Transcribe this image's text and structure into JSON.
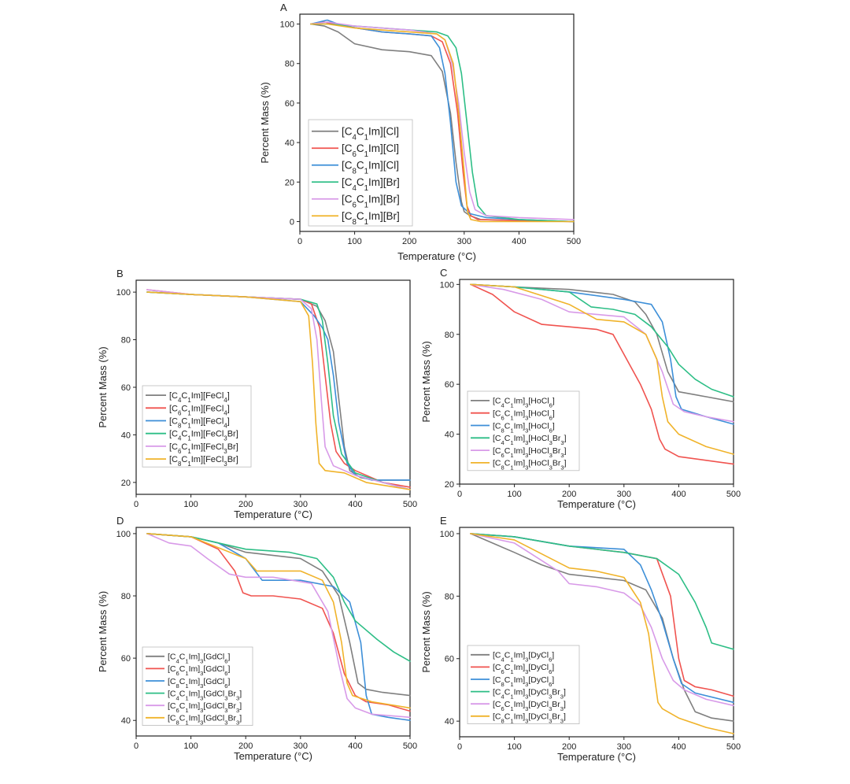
{
  "colors": [
    "#7f7f7f",
    "#f0534f",
    "#3d8fd8",
    "#2dbe86",
    "#d89ae8",
    "#f0b32a"
  ],
  "chart_data": [
    {
      "panel": "A",
      "type": "line",
      "xlabel": "Temperature (°C)",
      "ylabel": "Percent Mass (%)",
      "xlim": [
        0,
        500
      ],
      "ylim": [
        -5,
        105
      ],
      "xticks": [
        0,
        100,
        200,
        300,
        400,
        500
      ],
      "yticks": [
        0,
        20,
        40,
        60,
        80,
        100
      ],
      "legend_placement": "lower-left",
      "series": [
        {
          "name": "[C4C1Im][Cl]",
          "x": [
            20,
            45,
            70,
            100,
            150,
            200,
            240,
            260,
            275,
            285,
            295,
            300,
            310,
            330,
            400,
            500
          ],
          "y": [
            100,
            99,
            96,
            90,
            87,
            86,
            84,
            76,
            55,
            30,
            10,
            5,
            3,
            1,
            0.5,
            0
          ]
        },
        {
          "name": "[C6C1Im][Cl]",
          "x": [
            20,
            45,
            80,
            150,
            200,
            240,
            260,
            275,
            288,
            298,
            305,
            312,
            325,
            400,
            500
          ],
          "y": [
            100,
            101,
            99,
            96,
            95,
            94,
            91,
            80,
            55,
            25,
            8,
            3,
            1,
            0.5,
            0
          ]
        },
        {
          "name": "[C8C1Im][Cl]",
          "x": [
            20,
            50,
            80,
            150,
            200,
            240,
            255,
            265,
            275,
            285,
            295,
            310,
            340,
            400,
            500
          ],
          "y": [
            100,
            102,
            99,
            96,
            95,
            94,
            88,
            75,
            50,
            20,
            8,
            4,
            2,
            1,
            0
          ]
        },
        {
          "name": "[C4C1Im][Br]",
          "x": [
            20,
            50,
            100,
            200,
            250,
            270,
            285,
            295,
            305,
            315,
            325,
            340,
            400,
            500
          ],
          "y": [
            100,
            100,
            99,
            97,
            96,
            94,
            88,
            75,
            50,
            25,
            8,
            3,
            1,
            0
          ]
        },
        {
          "name": "[C6C1Im][Br]",
          "x": [
            20,
            50,
            100,
            200,
            250,
            265,
            278,
            290,
            300,
            310,
            320,
            340,
            400,
            500
          ],
          "y": [
            100,
            101,
            99,
            97,
            95,
            92,
            80,
            60,
            35,
            15,
            6,
            3,
            2,
            1
          ]
        },
        {
          "name": "[C8C1Im][Br]",
          "x": [
            20,
            50,
            100,
            200,
            250,
            265,
            280,
            290,
            300,
            306,
            312,
            330,
            400,
            500
          ],
          "y": [
            100,
            100,
            98,
            96,
            95,
            92,
            80,
            55,
            25,
            5,
            1,
            0,
            0,
            0
          ]
        }
      ]
    },
    {
      "panel": "B",
      "type": "line",
      "xlabel": "Temperature (°C)",
      "ylabel": "Percent Mass (%)",
      "xlim": [
        0,
        500
      ],
      "ylim": [
        15,
        105
      ],
      "xticks": [
        0,
        100,
        200,
        300,
        400,
        500
      ],
      "yticks": [
        20,
        40,
        60,
        80,
        100
      ],
      "legend_placement": "lower-left",
      "series": [
        {
          "name": "[C4C1Im][FeCl4]",
          "x": [
            20,
            100,
            200,
            300,
            330,
            345,
            360,
            370,
            380,
            390,
            410,
            440,
            500
          ],
          "y": [
            100,
            99,
            98,
            97,
            94,
            88,
            75,
            55,
            35,
            25,
            22,
            21,
            21
          ]
        },
        {
          "name": "[C6C1Im][FeCl4]",
          "x": [
            20,
            100,
            200,
            300,
            320,
            335,
            345,
            355,
            365,
            380,
            400,
            420,
            450,
            500
          ],
          "y": [
            101,
            99,
            98,
            97,
            95,
            85,
            65,
            45,
            33,
            28,
            25,
            23,
            20,
            18
          ]
        },
        {
          "name": "[C8C1Im][FeCl4]",
          "x": [
            20,
            100,
            200,
            300,
            325,
            340,
            350,
            360,
            370,
            385,
            400,
            430,
            500
          ],
          "y": [
            100,
            99,
            98,
            96,
            90,
            85,
            80,
            65,
            45,
            28,
            23,
            21,
            21
          ]
        },
        {
          "name": "[C4C1Im][FeCl3Br]",
          "x": [
            20,
            100,
            200,
            300,
            330,
            340,
            350,
            360,
            375,
            400,
            450,
            500
          ],
          "y": [
            100,
            99,
            98,
            97,
            95,
            88,
            70,
            48,
            32,
            24,
            20,
            17
          ]
        },
        {
          "name": "[C6C1Im][FeCl3Br]",
          "x": [
            20,
            100,
            200,
            300,
            320,
            330,
            338,
            345,
            360,
            400,
            450,
            500
          ],
          "y": [
            101,
            99,
            98,
            97,
            93,
            80,
            55,
            35,
            27,
            23,
            20,
            17
          ]
        },
        {
          "name": "[C8C1Im][FeCl3Br]",
          "x": [
            20,
            100,
            200,
            300,
            315,
            322,
            328,
            334,
            345,
            380,
            420,
            500
          ],
          "y": [
            100,
            99,
            98,
            96,
            90,
            70,
            45,
            28,
            25,
            24,
            20,
            17
          ]
        }
      ]
    },
    {
      "panel": "C",
      "type": "line",
      "xlabel": "Temperature (°C)",
      "ylabel": "Percent Mass (%)",
      "xlim": [
        0,
        500
      ],
      "ylim": [
        20,
        102
      ],
      "xticks": [
        0,
        100,
        200,
        300,
        400,
        500
      ],
      "yticks": [
        20,
        40,
        60,
        80,
        100
      ],
      "legend_placement": "lower-left",
      "series": [
        {
          "name": "[C4C1Im]3[HoCl6]",
          "x": [
            20,
            100,
            200,
            280,
            320,
            340,
            360,
            380,
            400,
            450,
            500
          ],
          "y": [
            100,
            99,
            98,
            96,
            93,
            88,
            80,
            65,
            57,
            55,
            53
          ]
        },
        {
          "name": "[C6C1Im]3[HoCl6]",
          "x": [
            20,
            60,
            100,
            150,
            200,
            250,
            280,
            300,
            330,
            350,
            365,
            375,
            400,
            500
          ],
          "y": [
            100,
            96,
            89,
            84,
            83,
            82,
            80,
            72,
            60,
            50,
            38,
            34,
            31,
            28
          ]
        },
        {
          "name": "[C8C1Im]3[HoCl6]",
          "x": [
            20,
            100,
            200,
            300,
            350,
            370,
            385,
            395,
            405,
            450,
            500
          ],
          "y": [
            100,
            99,
            97,
            94,
            92,
            85,
            70,
            55,
            50,
            47,
            44
          ]
        },
        {
          "name": "[C4C1Im]3[HoCl3Br3]",
          "x": [
            20,
            100,
            200,
            240,
            280,
            320,
            350,
            380,
            400,
            430,
            460,
            500
          ],
          "y": [
            100,
            99,
            97,
            91,
            90,
            88,
            83,
            75,
            68,
            62,
            58,
            55
          ]
        },
        {
          "name": "[C6C1Im]3[HoCl3Br3]",
          "x": [
            20,
            80,
            150,
            200,
            250,
            300,
            340,
            370,
            390,
            410,
            450,
            500
          ],
          "y": [
            100,
            98,
            94,
            89,
            88,
            87,
            80,
            65,
            52,
            49,
            47,
            45
          ]
        },
        {
          "name": "[C8C1Im]3[HoCl3Br3]",
          "x": [
            20,
            100,
            200,
            250,
            300,
            340,
            360,
            370,
            380,
            400,
            450,
            500
          ],
          "y": [
            100,
            99,
            92,
            86,
            85,
            80,
            70,
            55,
            45,
            40,
            35,
            32
          ]
        }
      ]
    },
    {
      "panel": "D",
      "type": "line",
      "xlabel": "Temperature (°C)",
      "ylabel": "Percent Mass (%)",
      "xlim": [
        0,
        500
      ],
      "ylim": [
        35,
        102
      ],
      "xticks": [
        0,
        100,
        200,
        300,
        400,
        500
      ],
      "yticks": [
        40,
        60,
        80,
        100
      ],
      "legend_placement": "lower-left",
      "series": [
        {
          "name": "[C4C1Im]3[GdCl6]",
          "x": [
            20,
            100,
            150,
            200,
            300,
            340,
            370,
            390,
            405,
            420,
            450,
            500
          ],
          "y": [
            100,
            99,
            97,
            94,
            92,
            88,
            80,
            65,
            52,
            50,
            49,
            48
          ]
        },
        {
          "name": "[C6C1Im]3[GdCl6]",
          "x": [
            20,
            100,
            150,
            180,
            195,
            210,
            250,
            300,
            340,
            360,
            380,
            400,
            420,
            460,
            500
          ],
          "y": [
            100,
            99,
            95,
            88,
            81,
            80,
            80,
            79,
            76,
            68,
            55,
            48,
            46,
            45,
            43
          ]
        },
        {
          "name": "[C8C1Im]3[GdCl6]",
          "x": [
            20,
            100,
            150,
            200,
            230,
            300,
            360,
            390,
            410,
            420,
            430,
            460,
            500
          ],
          "y": [
            100,
            99,
            97,
            92,
            85,
            85,
            83,
            78,
            65,
            48,
            42,
            41,
            40
          ]
        },
        {
          "name": "[C4C1Im]3[GdCl3Br3]",
          "x": [
            20,
            100,
            200,
            280,
            330,
            360,
            380,
            400,
            440,
            470,
            500
          ],
          "y": [
            100,
            99,
            95,
            94,
            92,
            86,
            78,
            72,
            66,
            62,
            59
          ]
        },
        {
          "name": "[C6C1Im]3[GdCl3Br3]",
          "x": [
            20,
            60,
            100,
            130,
            170,
            200,
            250,
            320,
            350,
            370,
            385,
            400,
            430,
            500
          ],
          "y": [
            100,
            97,
            96,
            92,
            87,
            86,
            86,
            84,
            75,
            58,
            47,
            44,
            42,
            41
          ]
        },
        {
          "name": "[C8C1Im]3[GdCl3Br3]",
          "x": [
            20,
            100,
            200,
            220,
            300,
            340,
            360,
            375,
            385,
            395,
            430,
            500
          ],
          "y": [
            100,
            99,
            92,
            88,
            88,
            85,
            78,
            65,
            52,
            48,
            46,
            44
          ]
        }
      ]
    },
    {
      "panel": "E",
      "type": "line",
      "xlabel": "Temperature (°C)",
      "ylabel": "Percent Mass (%)",
      "xlim": [
        0,
        500
      ],
      "ylim": [
        35,
        102
      ],
      "xticks": [
        0,
        100,
        200,
        300,
        400,
        500
      ],
      "yticks": [
        40,
        60,
        80,
        100
      ],
      "legend_placement": "lower-left",
      "series": [
        {
          "name": "[C4C1Im]3[DyCl6]",
          "x": [
            20,
            100,
            150,
            200,
            250,
            300,
            340,
            370,
            390,
            410,
            430,
            460,
            500
          ],
          "y": [
            100,
            94,
            90,
            87,
            86,
            85,
            82,
            73,
            60,
            50,
            43,
            41,
            40
          ]
        },
        {
          "name": "[C6C1Im]3[DyCl6]",
          "x": [
            20,
            100,
            200,
            300,
            360,
            385,
            400,
            410,
            430,
            460,
            500
          ],
          "y": [
            100,
            99,
            96,
            94,
            92,
            80,
            60,
            53,
            51,
            50,
            48
          ]
        },
        {
          "name": "[C8C1Im]3[DyCl6]",
          "x": [
            20,
            100,
            200,
            300,
            330,
            350,
            370,
            390,
            405,
            430,
            500
          ],
          "y": [
            100,
            99,
            96,
            95,
            90,
            82,
            72,
            60,
            52,
            49,
            46
          ]
        },
        {
          "name": "[C4C1Im]3[DyCl3Br3]",
          "x": [
            20,
            100,
            200,
            300,
            360,
            400,
            430,
            450,
            460,
            480,
            500
          ],
          "y": [
            100,
            99,
            96,
            94,
            92,
            87,
            78,
            70,
            65,
            64,
            63
          ]
        },
        {
          "name": "[C6C1Im]3[DyCl3Br3]",
          "x": [
            20,
            100,
            180,
            200,
            250,
            300,
            330,
            350,
            370,
            390,
            410,
            450,
            500
          ],
          "y": [
            100,
            97,
            88,
            84,
            83,
            81,
            77,
            70,
            60,
            53,
            50,
            47,
            45
          ]
        },
        {
          "name": "[C8C1Im]3[DyCl3Br3]",
          "x": [
            20,
            100,
            200,
            250,
            300,
            330,
            345,
            355,
            362,
            370,
            400,
            450,
            500
          ],
          "y": [
            100,
            98,
            89,
            88,
            86,
            78,
            68,
            55,
            46,
            44,
            41,
            38,
            36
          ]
        }
      ]
    }
  ]
}
